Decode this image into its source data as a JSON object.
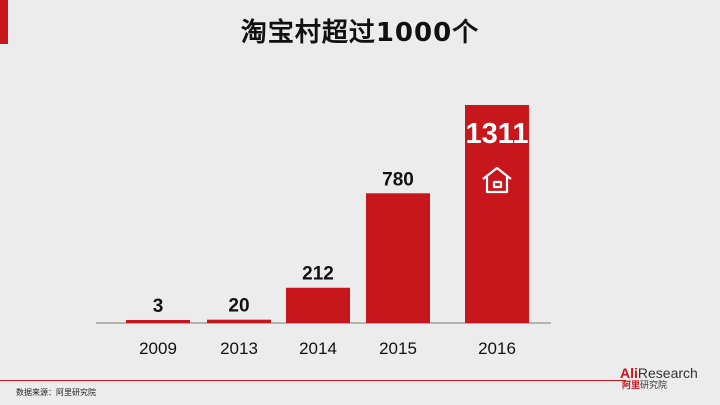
{
  "title": "淘宝村超过1000个",
  "source": "数据来源：阿里研究院",
  "logo": {
    "ali": "Ali",
    "research": "Research",
    "zh_red": "阿里",
    "zh": "研究院"
  },
  "colors": {
    "bar": "#c8161d",
    "accent": "#c8161d",
    "icon": "#ffffff"
  },
  "chart_data": {
    "type": "bar",
    "categories": [
      "2009",
      "2013",
      "2014",
      "2015",
      "2016"
    ],
    "values": [
      3,
      20,
      212,
      780,
      1311
    ],
    "data_labels": [
      "3",
      "20",
      "212",
      "780",
      "1311"
    ],
    "title": "淘宝村超过1000个",
    "xlabel": "",
    "ylabel": "",
    "grid": false,
    "highlight_icon": "house-icon"
  }
}
